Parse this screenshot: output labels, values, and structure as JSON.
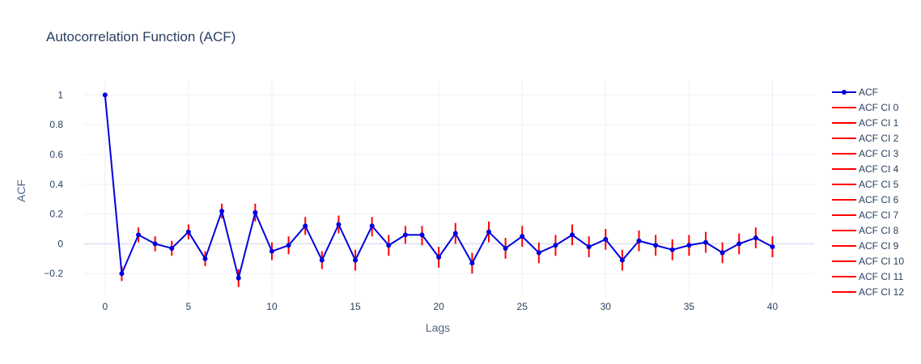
{
  "chart_data": {
    "type": "line",
    "title": "Autocorrelation Function (ACF)",
    "xlabel": "Lags",
    "ylabel": "ACF",
    "xlim": [
      -1.3,
      42.5
    ],
    "ylim": [
      -0.34,
      1.1
    ],
    "xticks": [
      0,
      5,
      10,
      15,
      20,
      25,
      30,
      35,
      40
    ],
    "yticks": [
      -0.2,
      0,
      0.2,
      0.4,
      0.6,
      0.8,
      1
    ],
    "ytick_labels": [
      "−0.2",
      "0",
      "0.2",
      "0.4",
      "0.6",
      "0.8",
      "1"
    ],
    "grid": true,
    "legend_position": "right",
    "series": [
      {
        "name": "ACF",
        "color": "#0000dd",
        "x": [
          0,
          1,
          2,
          3,
          4,
          5,
          6,
          7,
          8,
          9,
          10,
          11,
          12,
          13,
          14,
          15,
          16,
          17,
          18,
          19,
          20,
          21,
          22,
          23,
          24,
          25,
          26,
          27,
          28,
          29,
          30,
          31,
          32,
          33,
          34,
          35,
          36,
          37,
          38,
          39,
          40
        ],
        "values": [
          1.0,
          -0.2,
          0.06,
          0.0,
          -0.03,
          0.08,
          -0.1,
          0.22,
          -0.23,
          0.21,
          -0.05,
          -0.01,
          0.12,
          -0.11,
          0.13,
          -0.11,
          0.12,
          -0.01,
          0.06,
          0.06,
          -0.09,
          0.07,
          -0.13,
          0.08,
          -0.03,
          0.05,
          -0.06,
          -0.01,
          0.06,
          -0.02,
          0.03,
          -0.11,
          0.02,
          -0.01,
          -0.04,
          -0.01,
          0.01,
          -0.06,
          0.0,
          0.04,
          -0.02
        ]
      }
    ],
    "confidence_intervals": {
      "color": "#ff0000",
      "legend_names": [
        "ACF CI 0",
        "ACF CI 1",
        "ACF CI 2",
        "ACF CI 3",
        "ACF CI 4",
        "ACF CI 5",
        "ACF CI 6",
        "ACF CI 7",
        "ACF CI 8",
        "ACF CI 9",
        "ACF CI 10",
        "ACF CI 11",
        "ACF CI 12"
      ],
      "lower": [
        1.0,
        -0.25,
        0.01,
        -0.05,
        -0.08,
        0.03,
        -0.15,
        0.17,
        -0.29,
        0.15,
        -0.11,
        -0.07,
        0.06,
        -0.17,
        0.07,
        -0.18,
        0.05,
        -0.08,
        0.0,
        -0.01,
        -0.16,
        0.0,
        -0.2,
        0.01,
        -0.1,
        -0.02,
        -0.13,
        -0.08,
        -0.01,
        -0.09,
        -0.04,
        -0.18,
        -0.05,
        -0.08,
        -0.11,
        -0.08,
        -0.06,
        -0.13,
        -0.07,
        -0.03,
        -0.09
      ],
      "upper": [
        1.0,
        -0.15,
        0.11,
        0.05,
        0.02,
        0.13,
        -0.05,
        0.27,
        -0.17,
        0.27,
        0.01,
        0.05,
        0.18,
        -0.05,
        0.19,
        -0.04,
        0.18,
        0.06,
        0.12,
        0.12,
        -0.02,
        0.14,
        -0.06,
        0.15,
        0.04,
        0.12,
        0.01,
        0.06,
        0.13,
        0.05,
        0.1,
        -0.04,
        0.09,
        0.06,
        0.03,
        0.06,
        0.08,
        0.01,
        0.07,
        0.11,
        0.05
      ]
    }
  }
}
